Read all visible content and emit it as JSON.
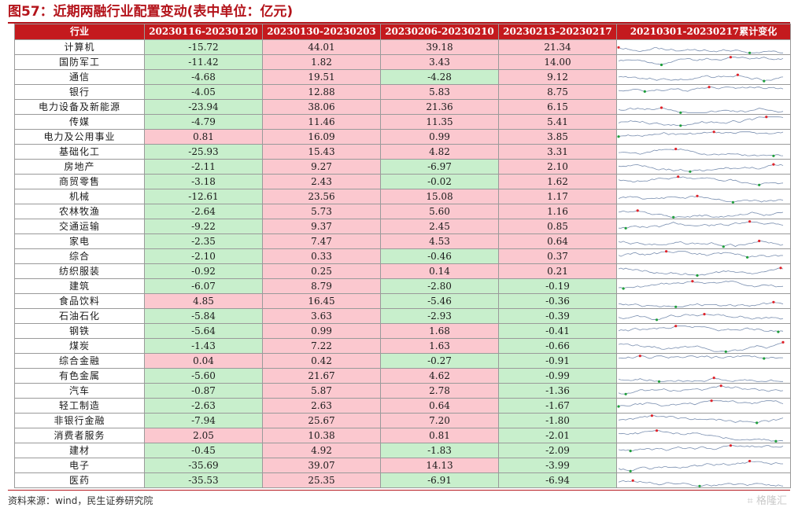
{
  "title": "图57：近期两融行业配置变动(表中单位：亿元)",
  "headers": [
    "行业",
    "20230116-20230120",
    "20230130-20230203",
    "20230206-20230210",
    "20230213-20230217",
    "20210301-20230217累计变化"
  ],
  "rows": [
    {
      "industry": "计算机",
      "v": [
        "-15.72",
        "44.01",
        "39.18",
        "21.34"
      ]
    },
    {
      "industry": "国防军工",
      "v": [
        "-11.42",
        "1.82",
        "3.43",
        "14.00"
      ]
    },
    {
      "industry": "通信",
      "v": [
        "-4.68",
        "19.51",
        "-4.28",
        "9.12"
      ]
    },
    {
      "industry": "银行",
      "v": [
        "-4.05",
        "12.88",
        "5.83",
        "8.75"
      ]
    },
    {
      "industry": "电力设备及新能源",
      "v": [
        "-23.94",
        "38.06",
        "21.36",
        "6.15"
      ]
    },
    {
      "industry": "传媒",
      "v": [
        "-4.79",
        "11.46",
        "11.35",
        "5.41"
      ]
    },
    {
      "industry": "电力及公用事业",
      "v": [
        "0.81",
        "16.09",
        "0.99",
        "3.85"
      ]
    },
    {
      "industry": "基础化工",
      "v": [
        "-25.93",
        "15.43",
        "4.82",
        "3.31"
      ]
    },
    {
      "industry": "房地产",
      "v": [
        "-2.11",
        "9.27",
        "-6.97",
        "2.10"
      ]
    },
    {
      "industry": "商贸零售",
      "v": [
        "-3.18",
        "2.43",
        "-0.02",
        "1.62"
      ]
    },
    {
      "industry": "机械",
      "v": [
        "-12.61",
        "23.56",
        "15.08",
        "1.17"
      ]
    },
    {
      "industry": "农林牧渔",
      "v": [
        "-2.64",
        "5.73",
        "5.60",
        "1.16"
      ]
    },
    {
      "industry": "交通运输",
      "v": [
        "-9.22",
        "9.37",
        "2.45",
        "0.85"
      ]
    },
    {
      "industry": "家电",
      "v": [
        "-2.35",
        "7.47",
        "4.53",
        "0.64"
      ]
    },
    {
      "industry": "综合",
      "v": [
        "-2.10",
        "0.33",
        "-0.46",
        "0.37"
      ]
    },
    {
      "industry": "纺织服装",
      "v": [
        "-0.92",
        "0.25",
        "0.14",
        "0.21"
      ]
    },
    {
      "industry": "建筑",
      "v": [
        "-6.07",
        "8.79",
        "-2.80",
        "-0.19"
      ]
    },
    {
      "industry": "食品饮料",
      "v": [
        "4.85",
        "16.45",
        "-5.46",
        "-0.36"
      ]
    },
    {
      "industry": "石油石化",
      "v": [
        "-5.84",
        "3.63",
        "-2.93",
        "-0.39"
      ]
    },
    {
      "industry": "钢铁",
      "v": [
        "-5.64",
        "0.99",
        "1.68",
        "-0.41"
      ]
    },
    {
      "industry": "煤炭",
      "v": [
        "-1.43",
        "7.22",
        "1.63",
        "-0.66"
      ]
    },
    {
      "industry": "综合金融",
      "v": [
        "0.04",
        "0.42",
        "-0.27",
        "-0.91"
      ]
    },
    {
      "industry": "有色金属",
      "v": [
        "-5.60",
        "21.67",
        "4.62",
        "-0.99"
      ]
    },
    {
      "industry": "汽车",
      "v": [
        "-0.87",
        "5.87",
        "2.78",
        "-1.36"
      ]
    },
    {
      "industry": "轻工制造",
      "v": [
        "-2.63",
        "2.63",
        "0.64",
        "-1.67"
      ]
    },
    {
      "industry": "非银行金融",
      "v": [
        "-7.94",
        "25.67",
        "7.20",
        "-1.80"
      ]
    },
    {
      "industry": "消费者服务",
      "v": [
        "2.05",
        "10.38",
        "0.81",
        "-2.01"
      ]
    },
    {
      "industry": "建材",
      "v": [
        "-0.45",
        "4.92",
        "-1.83",
        "-2.09"
      ]
    },
    {
      "industry": "电子",
      "v": [
        "-35.69",
        "39.07",
        "14.13",
        "-3.99"
      ]
    },
    {
      "industry": "医药",
      "v": [
        "-35.53",
        "25.35",
        "-6.91",
        "-6.94"
      ]
    }
  ],
  "source": "资料来源：wind，民生证券研究院",
  "watermark": "格隆汇",
  "colors": {
    "positive": "#fbc8cf",
    "negative": "#c8efcc",
    "header": "#c41a1e",
    "sparkline": "#7a8fb0",
    "max_marker": "#e0232a",
    "min_marker": "#1e9e3a"
  }
}
